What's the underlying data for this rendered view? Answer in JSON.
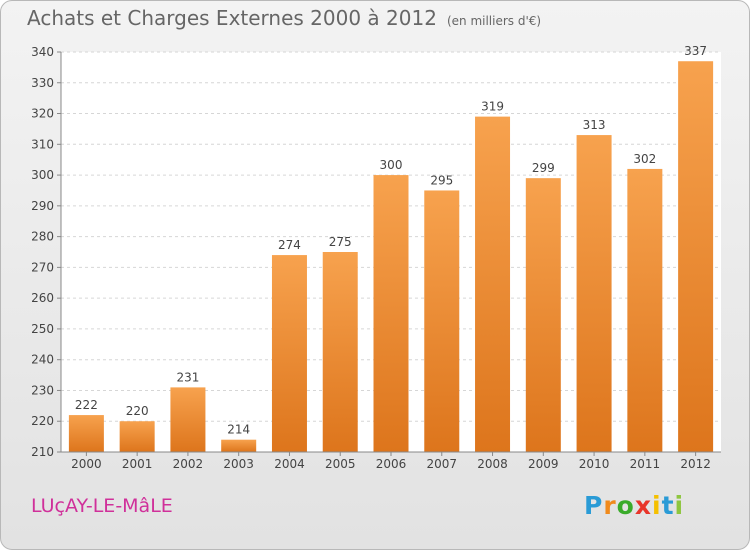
{
  "title": "Achats et Charges Externes 2000 à 2012",
  "subtitle": "(en milliers d'€)",
  "commune": "LUçAY-LE-MâLE",
  "logo": {
    "letters": [
      "P",
      "r",
      "o",
      "x",
      "i",
      "t",
      "i"
    ],
    "colors": [
      "#2a9bd6",
      "#f08a1c",
      "#3aab2a",
      "#e8352a",
      "#f5c000",
      "#2a9bd6",
      "#8ec63f"
    ]
  },
  "colors": {
    "bar_top": "#f7a24e",
    "bar_bottom": "#dd751c",
    "commune": "#d0309a",
    "axis_text": "#444444"
  },
  "chart_data": {
    "type": "bar",
    "categories": [
      "2000",
      "2001",
      "2002",
      "2003",
      "2004",
      "2005",
      "2006",
      "2007",
      "2008",
      "2009",
      "2010",
      "2011",
      "2012"
    ],
    "values": [
      222,
      220,
      231,
      214,
      274,
      275,
      300,
      295,
      319,
      299,
      313,
      302,
      337
    ],
    "ylim": [
      210,
      340
    ],
    "yticks": [
      210,
      220,
      230,
      240,
      250,
      260,
      270,
      280,
      290,
      300,
      310,
      320,
      330,
      340
    ],
    "grid": true,
    "data_labels": true
  }
}
